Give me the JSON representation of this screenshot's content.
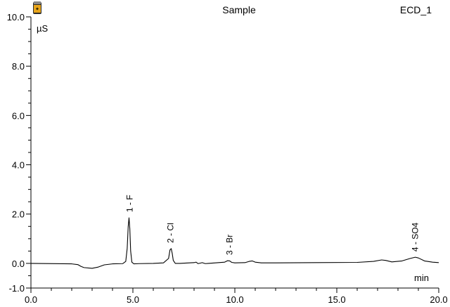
{
  "header": {
    "title": "Sample",
    "channel": "ECD_1",
    "icon": "vial-icon"
  },
  "chart_data": {
    "type": "line",
    "title": "Sample",
    "xlabel": "min",
    "ylabel": "µS",
    "xlim": [
      0.0,
      20.0
    ],
    "ylim": [
      -1.0,
      10.0
    ],
    "x_ticks": [
      "0.0",
      "5.0",
      "10.0",
      "15.0",
      "20.0"
    ],
    "y_ticks": [
      "-1.0",
      "0.0",
      "2.0",
      "4.0",
      "6.0",
      "8.0",
      "10.0"
    ],
    "grid": false,
    "line_color": "#000000",
    "series": [
      {
        "name": "",
        "x": [
          0.0,
          2.0,
          2.3,
          2.45,
          2.6,
          3.0,
          3.3,
          3.6,
          4.0,
          4.5,
          4.65,
          4.72,
          4.77,
          4.81,
          4.85,
          4.89,
          4.95,
          5.05,
          5.3,
          6.0,
          6.5,
          6.75,
          6.82,
          6.88,
          6.93,
          6.98,
          7.08,
          7.3,
          8.0,
          8.1,
          8.2,
          8.4,
          8.55,
          8.7,
          9.5,
          9.65,
          9.75,
          9.85,
          10.0,
          10.5,
          10.7,
          10.85,
          11.0,
          11.3,
          12.0,
          14.0,
          16.0,
          16.8,
          17.2,
          17.4,
          17.7,
          18.2,
          18.6,
          18.85,
          19.0,
          19.3,
          19.7,
          20.0
        ],
        "y": [
          0.0,
          -0.02,
          -0.05,
          -0.12,
          -0.17,
          -0.2,
          -0.15,
          -0.06,
          -0.02,
          -0.01,
          0.08,
          0.6,
          1.5,
          1.85,
          1.4,
          0.5,
          0.05,
          -0.02,
          -0.01,
          0.0,
          0.02,
          0.2,
          0.55,
          0.6,
          0.4,
          0.12,
          0.0,
          0.0,
          0.03,
          0.05,
          -0.01,
          0.03,
          -0.01,
          0.0,
          0.05,
          0.11,
          0.1,
          0.04,
          0.02,
          0.03,
          0.08,
          0.1,
          0.05,
          0.02,
          0.02,
          0.03,
          0.04,
          0.08,
          0.14,
          0.12,
          0.06,
          0.1,
          0.2,
          0.25,
          0.22,
          0.1,
          0.05,
          0.03
        ]
      }
    ],
    "peaks": [
      {
        "label": "1 - F",
        "x": 4.85,
        "y": 1.85
      },
      {
        "label": "2 - Cl",
        "x": 6.85,
        "y": 0.6
      },
      {
        "label": "3 - Br",
        "x": 9.75,
        "y": 0.11
      },
      {
        "label": "4 - SO4",
        "x": 18.85,
        "y": 0.25
      }
    ]
  }
}
